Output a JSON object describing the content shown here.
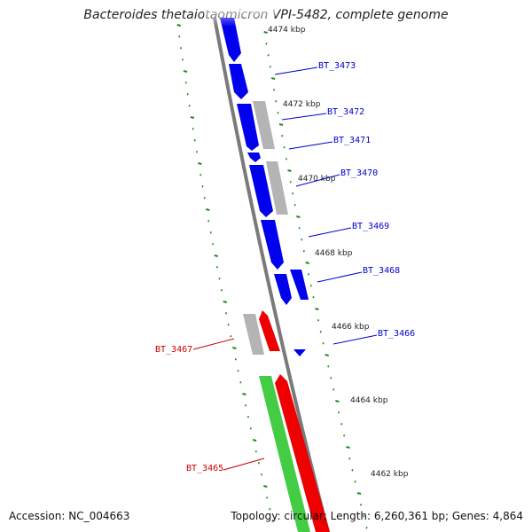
{
  "title": "Bacteroides thetaiotaomicron VPI-5482, complete genome",
  "footer": {
    "accession": "Accession: NC_004663",
    "info": "Topology: circular; Length: 6,260,361 bp; Genes: 4,864"
  },
  "colors": {
    "backbone": "#777777",
    "tick": "#228B22",
    "forward_gene": "#0000ee",
    "reverse_gene": "#ee0000",
    "rna_gene": "#44cc44",
    "other_gene": "#b4b4b4",
    "forward_label": "#0000cc",
    "reverse_label": "#cc0000"
  },
  "kbp_ticks": [
    "4474 kbp",
    "4472 kbp",
    "4470 kbp",
    "4468 kbp",
    "4466 kbp",
    "4464 kbp",
    "4462 kbp"
  ],
  "gene_labels": [
    {
      "name": "BT_3473",
      "strand": "forward"
    },
    {
      "name": "BT_3472",
      "strand": "forward"
    },
    {
      "name": "BT_3471",
      "strand": "forward"
    },
    {
      "name": "BT_3470",
      "strand": "forward"
    },
    {
      "name": "BT_3469",
      "strand": "forward"
    },
    {
      "name": "BT_3468",
      "strand": "forward"
    },
    {
      "name": "BT_3467",
      "strand": "reverse"
    },
    {
      "name": "BT_3466",
      "strand": "forward"
    },
    {
      "name": "BT_3465",
      "strand": "reverse"
    }
  ]
}
